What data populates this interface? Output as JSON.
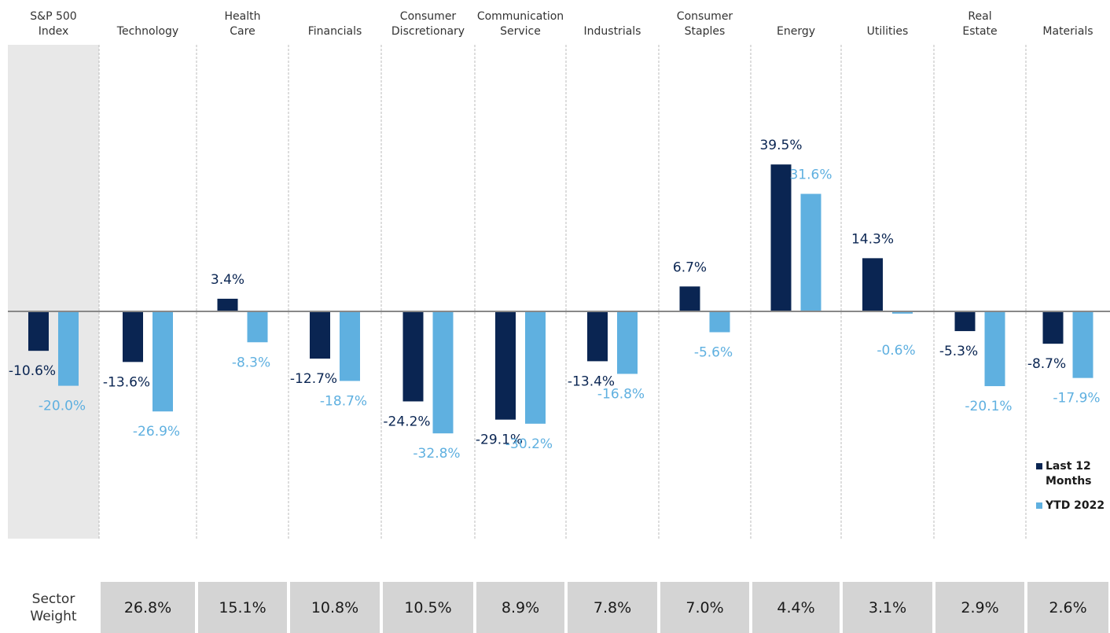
{
  "chart_data": {
    "type": "bar",
    "categories": [
      "S&P 500\nIndex",
      "Technology",
      "Health\nCare",
      "Financials",
      "Consumer\nDiscretionary",
      "Communication\nService",
      "Industrials",
      "Consumer\nStaples",
      "Energy",
      "Utilities",
      "Real\nEstate",
      "Materials"
    ],
    "series": [
      {
        "name": "Last 12\nMonths",
        "color": "#0a2552",
        "values": [
          -10.6,
          -13.6,
          3.4,
          -12.7,
          -24.2,
          -29.1,
          -13.4,
          6.7,
          39.5,
          14.3,
          -5.3,
          -8.7
        ],
        "value_labels": [
          "-10.6%",
          "-13.6%",
          "3.4%",
          "-12.7%",
          "-24.2%",
          "-29.1%",
          "-13.4%",
          "6.7%",
          "39.5%",
          "14.3%",
          "-5.3%",
          "-8.7%"
        ]
      },
      {
        "name": "YTD 2022",
        "color": "#5fb0e0",
        "values": [
          -20.0,
          -26.9,
          -8.3,
          -18.7,
          -32.8,
          -30.2,
          -16.8,
          -5.6,
          31.6,
          -0.6,
          -20.1,
          -17.9
        ],
        "value_labels": [
          "-20.0%",
          "-26.9%",
          "-8.3%",
          "-18.7%",
          "-32.8%",
          "-30.2%",
          "-16.8%",
          "-5.6%",
          "31.6%",
          "-0.6%",
          "-20.1%",
          "-17.9%"
        ]
      }
    ],
    "legend": "lower right"
  },
  "sector_weight": {
    "label": "Sector\nWeight",
    "values": [
      "26.8%",
      "15.1%",
      "10.8%",
      "10.5%",
      "8.9%",
      "7.8%",
      "7.0%",
      "4.4%",
      "3.1%",
      "2.9%",
      "2.6%"
    ]
  }
}
